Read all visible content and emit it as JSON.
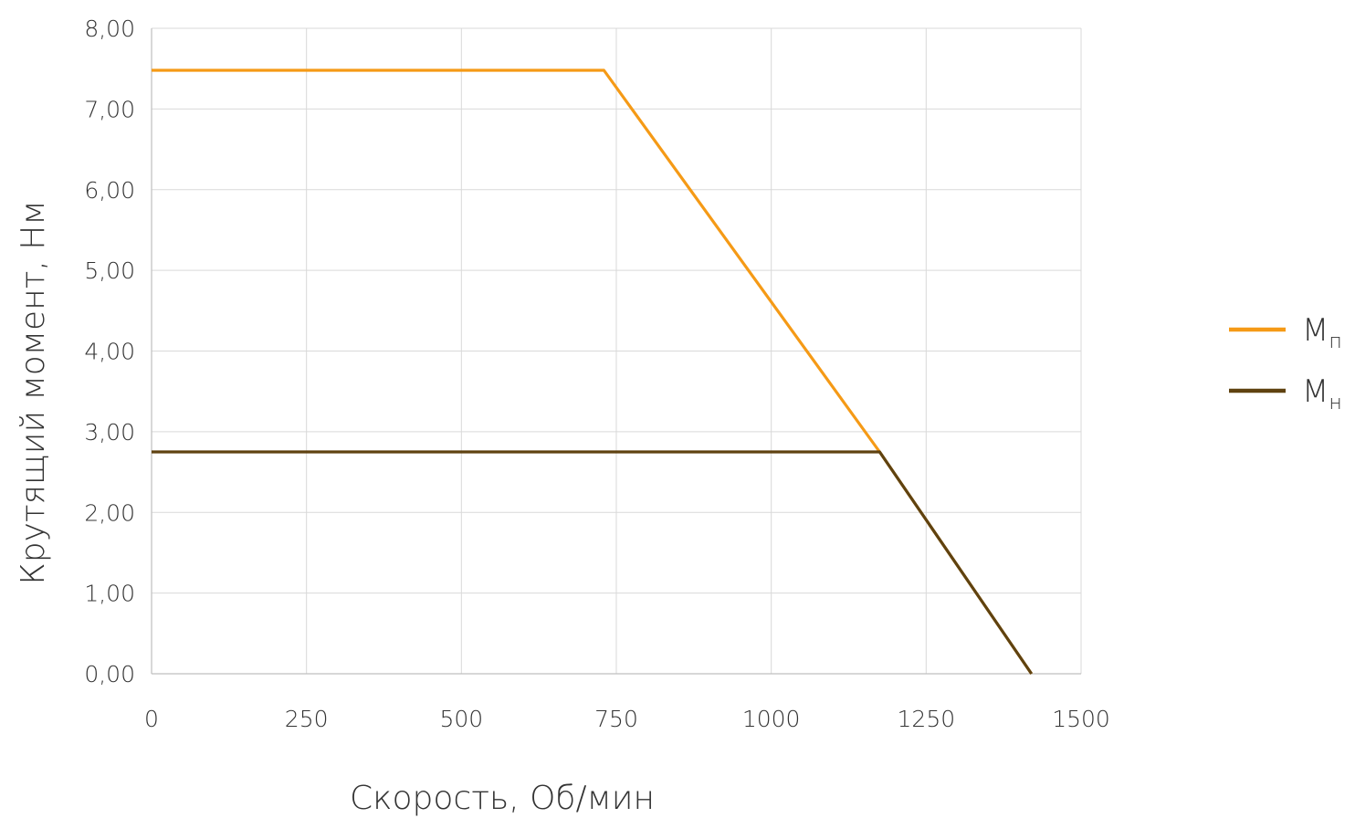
{
  "chart_data": {
    "type": "line",
    "title": "",
    "xlabel": "Скорость, Об/мин",
    "ylabel": "Крутящий момент, Нм",
    "xlim": [
      0,
      1500
    ],
    "ylim": [
      0,
      8
    ],
    "grid": true,
    "legend_position": "right",
    "x_ticks": [
      "0",
      "250",
      "500",
      "750",
      "1000",
      "1250",
      "1500"
    ],
    "y_ticks": [
      "0,00",
      "1,00",
      "2,00",
      "3,00",
      "4,00",
      "5,00",
      "6,00",
      "7,00",
      "8,00"
    ],
    "series": [
      {
        "name_main": "M",
        "name_sub": "п",
        "color": "#f59a16",
        "points": [
          [
            0,
            7.48
          ],
          [
            730,
            7.48
          ],
          [
            1175,
            2.75
          ],
          [
            1420,
            0
          ]
        ]
      },
      {
        "name_main": "M",
        "name_sub": "н",
        "color": "#5f4210",
        "points": [
          [
            0,
            2.75
          ],
          [
            1175,
            2.75
          ],
          [
            1420,
            0
          ]
        ]
      }
    ]
  }
}
